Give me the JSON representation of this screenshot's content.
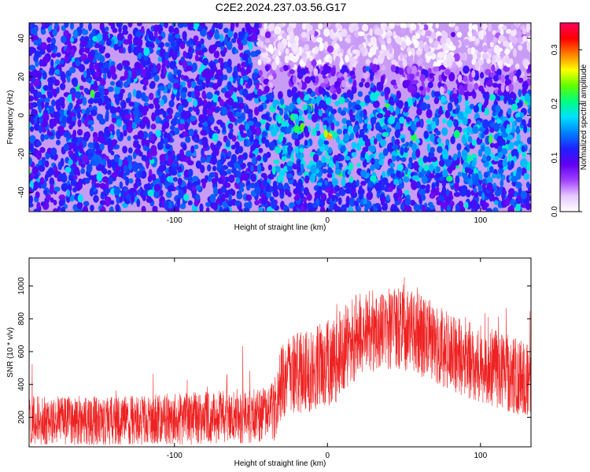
{
  "title": "C2E2.2024.237.03.56.G17",
  "chart_data": [
    {
      "type": "heatmap",
      "xlabel": "Height of straight line (km)",
      "ylabel": "Frequency (Hz)",
      "xlim": [
        -195,
        133
      ],
      "ylim": [
        -50,
        48
      ],
      "xticks": [
        -100,
        0,
        100
      ],
      "yticks": [
        -40,
        -20,
        0,
        20,
        40
      ],
      "colorbar": {
        "label": "Normalized spectral amplitude",
        "range": [
          0.0,
          0.35
        ],
        "ticks": [
          0.0,
          0.1,
          0.2,
          0.3
        ],
        "colors": [
          "#ffffff",
          "#e6c8ff",
          "#a040ff",
          "#6000f0",
          "#2020ff",
          "#0080ff",
          "#00e0ff",
          "#00ff80",
          "#60ff00",
          "#ffff00",
          "#ff8000",
          "#ff0000",
          "#ff0060"
        ]
      },
      "features": {
        "background_band_hz": [
          -50,
          48
        ],
        "quiet_region_x": [
          -45,
          133
        ],
        "quiet_region_hz": [
          25,
          48
        ],
        "active_band_x": [
          -45,
          133
        ],
        "active_band_hz": [
          -35,
          10
        ],
        "peak": {
          "x": 1,
          "y": -10,
          "value": 0.33
        }
      }
    },
    {
      "type": "line",
      "xlabel": "Height of straight line (km)",
      "ylabel": "SNR (10 * v/v)",
      "xlim": [
        -195,
        133
      ],
      "ylim": [
        20,
        1170
      ],
      "xticks": [
        -100,
        0,
        100
      ],
      "yticks": [
        200,
        400,
        600,
        800,
        1000
      ],
      "color": "#ee2222",
      "envelope": [
        {
          "x": -195,
          "mean": 180,
          "spread": 150
        },
        {
          "x": -140,
          "mean": 180,
          "spread": 150
        },
        {
          "x": -90,
          "mean": 190,
          "spread": 160
        },
        {
          "x": -50,
          "mean": 210,
          "spread": 170
        },
        {
          "x": -35,
          "mean": 230,
          "spread": 180
        },
        {
          "x": -30,
          "mean": 430,
          "spread": 230
        },
        {
          "x": -15,
          "mean": 480,
          "spread": 260
        },
        {
          "x": 5,
          "mean": 550,
          "spread": 270
        },
        {
          "x": 20,
          "mean": 700,
          "spread": 260
        },
        {
          "x": 45,
          "mean": 750,
          "spread": 250
        },
        {
          "x": 60,
          "mean": 700,
          "spread": 250
        },
        {
          "x": 90,
          "mean": 560,
          "spread": 240
        },
        {
          "x": 133,
          "mean": 420,
          "spread": 230
        }
      ]
    }
  ]
}
